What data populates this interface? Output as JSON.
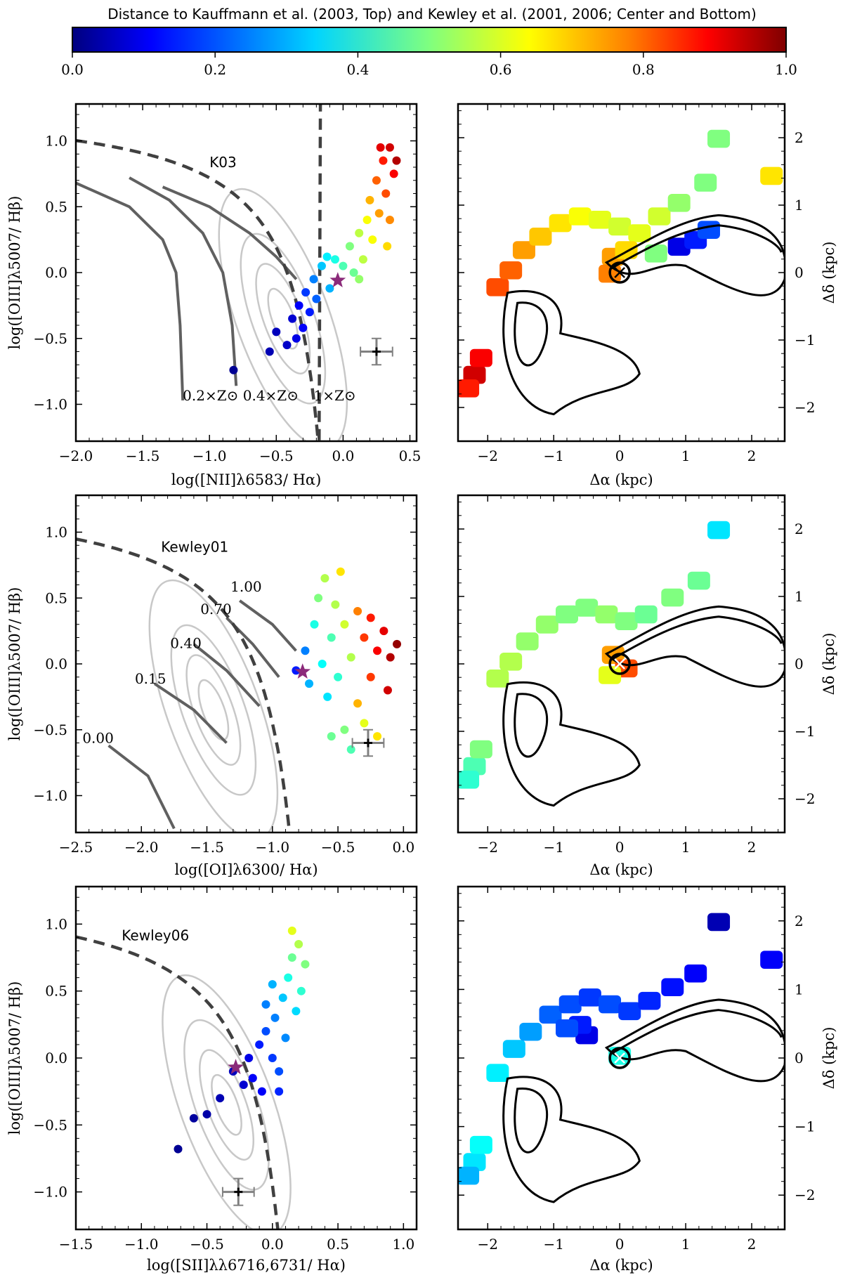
{
  "colorbar": {
    "title": "Distance to Kauffmann et al. (2003, Top) and Kewley et al. (2001, 2006; Center and Bottom)",
    "ticks": [
      "0.0",
      "0.2",
      "0.4",
      "0.6",
      "0.8",
      "1.0"
    ],
    "range": [
      0,
      1
    ],
    "colormap": "jet",
    "colors": [
      "#00007f",
      "#0000ff",
      "#007fff",
      "#00ffff",
      "#7fff7f",
      "#ffff00",
      "#ff7f00",
      "#ff0000",
      "#7f0000"
    ]
  },
  "chart_data": [
    {
      "id": "bpt_nii",
      "type": "scatter",
      "xlabel": "log([NII]λ6583/ Hα)",
      "ylabel": "log([OIII]λ5007/ Hβ)",
      "xlim": [
        -2.0,
        0.55
      ],
      "ylim": [
        -1.28,
        1.28
      ],
      "xticks": [
        "−2.0",
        "−1.5",
        "−1.0",
        "−0.5",
        "0.0",
        "0.5"
      ],
      "yticks": [
        "−1.0",
        "−0.5",
        "0.0",
        "0.5",
        "1.0"
      ],
      "demarcation_label": "K03",
      "model_labels": [
        "0.2×Z⊙",
        "0.4×Z⊙",
        "1×Z⊙"
      ],
      "model_tracks": [
        [
          [
            -2.0,
            0.68
          ],
          [
            -1.6,
            0.5
          ],
          [
            -1.35,
            0.25
          ],
          [
            -1.25,
            0.0
          ],
          [
            -1.22,
            -0.4
          ],
          [
            -1.2,
            -0.97
          ]
        ],
        [
          [
            -1.6,
            0.72
          ],
          [
            -1.3,
            0.55
          ],
          [
            -1.05,
            0.3
          ],
          [
            -0.9,
            0.0
          ],
          [
            -0.83,
            -0.4
          ],
          [
            -0.8,
            -0.86
          ]
        ],
        [
          [
            -1.35,
            0.65
          ],
          [
            -1.0,
            0.5
          ],
          [
            -0.7,
            0.3
          ],
          [
            -0.5,
            0.12
          ],
          [
            -0.35,
            -0.05
          ]
        ]
      ],
      "points": [
        {
          "x": -0.82,
          "y": -0.74,
          "d": 0.02
        },
        {
          "x": -0.55,
          "y": -0.6,
          "d": 0.05
        },
        {
          "x": -0.5,
          "y": -0.45,
          "d": 0.06
        },
        {
          "x": -0.42,
          "y": -0.55,
          "d": 0.07
        },
        {
          "x": -0.38,
          "y": -0.35,
          "d": 0.08
        },
        {
          "x": -0.35,
          "y": -0.5,
          "d": 0.1
        },
        {
          "x": -0.33,
          "y": -0.25,
          "d": 0.12
        },
        {
          "x": -0.3,
          "y": -0.42,
          "d": 0.12
        },
        {
          "x": -0.28,
          "y": -0.15,
          "d": 0.18
        },
        {
          "x": -0.25,
          "y": -0.3,
          "d": 0.15
        },
        {
          "x": -0.22,
          "y": -0.05,
          "d": 0.25
        },
        {
          "x": -0.2,
          "y": -0.2,
          "d": 0.22
        },
        {
          "x": -0.16,
          "y": 0.05,
          "d": 0.32
        },
        {
          "x": -0.12,
          "y": 0.12,
          "d": 0.36
        },
        {
          "x": -0.1,
          "y": -0.12,
          "d": 0.3
        },
        {
          "x": -0.06,
          "y": 0.1,
          "d": 0.4
        },
        {
          "x": 0.0,
          "y": 0.05,
          "d": 0.45
        },
        {
          "x": 0.05,
          "y": 0.2,
          "d": 0.5
        },
        {
          "x": 0.08,
          "y": 0.0,
          "d": 0.48
        },
        {
          "x": 0.12,
          "y": 0.3,
          "d": 0.56
        },
        {
          "x": 0.15,
          "y": 0.1,
          "d": 0.56
        },
        {
          "x": 0.18,
          "y": 0.4,
          "d": 0.62
        },
        {
          "x": 0.2,
          "y": 0.55,
          "d": 0.7
        },
        {
          "x": 0.22,
          "y": 0.25,
          "d": 0.62
        },
        {
          "x": 0.25,
          "y": 0.7,
          "d": 0.78
        },
        {
          "x": 0.27,
          "y": 0.45,
          "d": 0.72
        },
        {
          "x": 0.3,
          "y": 0.85,
          "d": 0.85
        },
        {
          "x": 0.32,
          "y": 0.6,
          "d": 0.8
        },
        {
          "x": 0.35,
          "y": 0.95,
          "d": 0.92
        },
        {
          "x": 0.38,
          "y": 0.75,
          "d": 0.88
        },
        {
          "x": 0.4,
          "y": 0.85,
          "d": 0.95
        },
        {
          "x": 0.28,
          "y": 0.95,
          "d": 0.9
        },
        {
          "x": 0.33,
          "y": 0.2,
          "d": 0.66
        },
        {
          "x": 0.12,
          "y": -0.05,
          "d": 0.52
        },
        {
          "x": 0.35,
          "y": 0.4,
          "d": 0.74
        }
      ],
      "star": {
        "x": -0.04,
        "y": -0.06
      },
      "errorbar": {
        "x": 0.25,
        "y": -0.6,
        "xerr": 0.12,
        "yerr": 0.1
      }
    },
    {
      "id": "map_nii",
      "type": "heatmap",
      "xlabel": "Δα (kpc)",
      "ylabel": "Δδ (kpc)",
      "xlim": [
        -2.45,
        2.5
      ],
      "ylim": [
        -2.5,
        2.5
      ],
      "xticks": [
        "−2",
        "−1",
        "0",
        "1",
        "2"
      ],
      "yticks": [
        "−2",
        "−1",
        "0",
        "1",
        "2"
      ],
      "marker": {
        "x": 0,
        "y": 0,
        "symbol": "×",
        "color": "#000000"
      },
      "patches": [
        {
          "x": -2.2,
          "y": -1.55,
          "d": 0.92
        },
        {
          "x": -2.1,
          "y": -1.3,
          "d": 0.88
        },
        {
          "x": -2.3,
          "y": -1.75,
          "d": 0.85
        },
        {
          "x": -1.85,
          "y": -0.25,
          "d": 0.8
        },
        {
          "x": -1.65,
          "y": 0.0,
          "d": 0.78
        },
        {
          "x": -1.45,
          "y": 0.3,
          "d": 0.72
        },
        {
          "x": -1.2,
          "y": 0.5,
          "d": 0.68
        },
        {
          "x": -0.9,
          "y": 0.7,
          "d": 0.65
        },
        {
          "x": -0.6,
          "y": 0.8,
          "d": 0.62
        },
        {
          "x": -0.3,
          "y": 0.75,
          "d": 0.6
        },
        {
          "x": 0.0,
          "y": 0.65,
          "d": 0.58
        },
        {
          "x": 0.3,
          "y": 0.55,
          "d": 0.6
        },
        {
          "x": 0.6,
          "y": 0.8,
          "d": 0.58
        },
        {
          "x": 0.9,
          "y": 1.0,
          "d": 0.52
        },
        {
          "x": 1.3,
          "y": 1.3,
          "d": 0.5
        },
        {
          "x": -0.1,
          "y": 0.2,
          "d": 0.72
        },
        {
          "x": 0.1,
          "y": 0.3,
          "d": 0.66
        },
        {
          "x": -0.15,
          "y": -0.05,
          "d": 0.75
        },
        {
          "x": 0.9,
          "y": 0.35,
          "d": 0.1
        },
        {
          "x": 1.15,
          "y": 0.45,
          "d": 0.15
        },
        {
          "x": 1.35,
          "y": 0.6,
          "d": 0.2
        },
        {
          "x": 0.55,
          "y": 0.25,
          "d": 0.5
        },
        {
          "x": 1.5,
          "y": 1.95,
          "d": 0.5
        },
        {
          "x": 2.3,
          "y": 1.4,
          "d": 0.65
        }
      ]
    },
    {
      "id": "bpt_oi",
      "type": "scatter",
      "xlabel": "log([OI]λ6300/ Hα)",
      "ylabel": "log([OIII]λ5007/ Hβ)",
      "xlim": [
        -2.5,
        0.1
      ],
      "ylim": [
        -1.28,
        1.28
      ],
      "xticks": [
        "−2.5",
        "−2.0",
        "−1.5",
        "−1.0",
        "−0.5",
        "0.0"
      ],
      "yticks": [
        "−1.0",
        "−0.5",
        "0.0",
        "0.5",
        "1.0"
      ],
      "demarcation_label": "Kewley01",
      "model_labels": [
        "1.00",
        "0.70",
        "0.40",
        "0.15",
        "0.00"
      ],
      "model_tracks": [
        [
          [
            -1.25,
            0.48
          ],
          [
            -1.0,
            0.3
          ],
          [
            -0.82,
            0.1
          ]
        ],
        [
          [
            -1.35,
            0.35
          ],
          [
            -1.15,
            0.15
          ],
          [
            -0.95,
            -0.1
          ]
        ],
        [
          [
            -1.6,
            0.15
          ],
          [
            -1.35,
            -0.05
          ],
          [
            -1.1,
            -0.32
          ]
        ],
        [
          [
            -1.9,
            -0.15
          ],
          [
            -1.6,
            -0.35
          ],
          [
            -1.35,
            -0.6
          ]
        ],
        [
          [
            -2.25,
            -0.62
          ],
          [
            -1.95,
            -0.85
          ],
          [
            -1.75,
            -1.25
          ]
        ]
      ],
      "points": [
        {
          "x": -0.82,
          "y": -0.05,
          "d": 0.15
        },
        {
          "x": -0.75,
          "y": 0.1,
          "d": 0.25
        },
        {
          "x": -0.72,
          "y": -0.15,
          "d": 0.3
        },
        {
          "x": -0.68,
          "y": 0.3,
          "d": 0.4
        },
        {
          "x": -0.65,
          "y": 0.5,
          "d": 0.5
        },
        {
          "x": -0.62,
          "y": 0.0,
          "d": 0.38
        },
        {
          "x": -0.6,
          "y": 0.65,
          "d": 0.55
        },
        {
          "x": -0.58,
          "y": -0.25,
          "d": 0.35
        },
        {
          "x": -0.55,
          "y": 0.2,
          "d": 0.45
        },
        {
          "x": -0.52,
          "y": 0.45,
          "d": 0.55
        },
        {
          "x": -0.5,
          "y": -0.1,
          "d": 0.42
        },
        {
          "x": -0.48,
          "y": 0.7,
          "d": 0.65
        },
        {
          "x": -0.45,
          "y": 0.3,
          "d": 0.58
        },
        {
          "x": -0.4,
          "y": 0.05,
          "d": 0.55
        },
        {
          "x": -0.35,
          "y": 0.4,
          "d": 0.75
        },
        {
          "x": -0.3,
          "y": 0.2,
          "d": 0.82
        },
        {
          "x": -0.25,
          "y": 0.35,
          "d": 0.85
        },
        {
          "x": -0.2,
          "y": 0.1,
          "d": 0.88
        },
        {
          "x": -0.15,
          "y": 0.25,
          "d": 0.9
        },
        {
          "x": -0.1,
          "y": 0.05,
          "d": 0.95
        },
        {
          "x": -0.05,
          "y": 0.15,
          "d": 0.98
        },
        {
          "x": -0.45,
          "y": -0.5,
          "d": 0.5
        },
        {
          "x": -0.4,
          "y": -0.65,
          "d": 0.45
        },
        {
          "x": -0.3,
          "y": -0.45,
          "d": 0.6
        },
        {
          "x": -0.55,
          "y": -0.55,
          "d": 0.48
        },
        {
          "x": -0.2,
          "y": -0.55,
          "d": 0.65
        },
        {
          "x": -0.35,
          "y": -0.3,
          "d": 0.7
        },
        {
          "x": -0.25,
          "y": -0.1,
          "d": 0.82
        },
        {
          "x": -0.12,
          "y": -0.2,
          "d": 0.92
        }
      ],
      "star": {
        "x": -0.77,
        "y": -0.06
      },
      "errorbar": {
        "x": -0.27,
        "y": -0.6,
        "xerr": 0.12,
        "yerr": 0.1
      }
    },
    {
      "id": "map_oi",
      "type": "heatmap",
      "xlabel": "Δα (kpc)",
      "ylabel": "Δδ (kpc)",
      "xlim": [
        -2.45,
        2.5
      ],
      "ylim": [
        -2.5,
        2.5
      ],
      "xticks": [
        "−2",
        "−1",
        "0",
        "1",
        "2"
      ],
      "yticks": [
        "−2",
        "−1",
        "0",
        "1",
        "2"
      ],
      "marker": {
        "x": 0,
        "y": 0,
        "symbol": "×",
        "color": "#ffffff"
      },
      "patches": [
        {
          "x": -2.2,
          "y": -1.55,
          "d": 0.45
        },
        {
          "x": -2.1,
          "y": -1.3,
          "d": 0.5
        },
        {
          "x": -2.3,
          "y": -1.75,
          "d": 0.42
        },
        {
          "x": -1.85,
          "y": -0.25,
          "d": 0.55
        },
        {
          "x": -1.65,
          "y": 0.0,
          "d": 0.55
        },
        {
          "x": -1.4,
          "y": 0.3,
          "d": 0.52
        },
        {
          "x": -1.1,
          "y": 0.55,
          "d": 0.52
        },
        {
          "x": -0.8,
          "y": 0.7,
          "d": 0.5
        },
        {
          "x": -0.5,
          "y": 0.8,
          "d": 0.5
        },
        {
          "x": -0.2,
          "y": 0.7,
          "d": 0.52
        },
        {
          "x": 0.1,
          "y": 0.6,
          "d": 0.5
        },
        {
          "x": 0.4,
          "y": 0.7,
          "d": 0.48
        },
        {
          "x": 0.8,
          "y": 0.95,
          "d": 0.5
        },
        {
          "x": 1.2,
          "y": 1.2,
          "d": 0.48
        },
        {
          "x": -0.1,
          "y": 0.1,
          "d": 0.72
        },
        {
          "x": 0.1,
          "y": -0.1,
          "d": 0.8
        },
        {
          "x": -0.15,
          "y": -0.2,
          "d": 0.6
        },
        {
          "x": 1.5,
          "y": 1.95,
          "d": 0.35
        }
      ]
    },
    {
      "id": "bpt_sii",
      "type": "scatter",
      "xlabel": "log([SII]λλ6716,6731/ Hα)",
      "ylabel": "log([OIII]λ5007/ Hβ)",
      "xlim": [
        -1.5,
        1.1
      ],
      "ylim": [
        -1.28,
        1.28
      ],
      "xticks": [
        "−1.5",
        "−1.0",
        "−0.5",
        "0.0",
        "0.5",
        "1.0"
      ],
      "yticks": [
        "−1.0",
        "−0.5",
        "0.0",
        "0.5",
        "1.0"
      ],
      "demarcation_label": "Kewley06",
      "points": [
        {
          "x": -0.72,
          "y": -0.68,
          "d": 0.02
        },
        {
          "x": -0.6,
          "y": -0.45,
          "d": 0.03
        },
        {
          "x": -0.5,
          "y": -0.42,
          "d": 0.04
        },
        {
          "x": -0.4,
          "y": -0.3,
          "d": 0.05
        },
        {
          "x": -0.3,
          "y": -0.1,
          "d": 0.06
        },
        {
          "x": -0.22,
          "y": -0.2,
          "d": 0.08
        },
        {
          "x": -0.18,
          "y": 0.0,
          "d": 0.1
        },
        {
          "x": -0.15,
          "y": -0.15,
          "d": 0.12
        },
        {
          "x": -0.1,
          "y": 0.1,
          "d": 0.15
        },
        {
          "x": -0.08,
          "y": -0.25,
          "d": 0.12
        },
        {
          "x": -0.05,
          "y": 0.2,
          "d": 0.2
        },
        {
          "x": 0.0,
          "y": 0.0,
          "d": 0.18
        },
        {
          "x": 0.02,
          "y": 0.3,
          "d": 0.25
        },
        {
          "x": 0.05,
          "y": -0.1,
          "d": 0.2
        },
        {
          "x": 0.08,
          "y": 0.45,
          "d": 0.32
        },
        {
          "x": 0.1,
          "y": 0.15,
          "d": 0.26
        },
        {
          "x": 0.12,
          "y": 0.6,
          "d": 0.4
        },
        {
          "x": 0.15,
          "y": 0.75,
          "d": 0.48
        },
        {
          "x": 0.18,
          "y": 0.35,
          "d": 0.34
        },
        {
          "x": 0.2,
          "y": 0.85,
          "d": 0.55
        },
        {
          "x": 0.22,
          "y": 0.5,
          "d": 0.42
        },
        {
          "x": 0.15,
          "y": 0.95,
          "d": 0.6
        },
        {
          "x": 0.25,
          "y": 0.7,
          "d": 0.5
        },
        {
          "x": 0.0,
          "y": 0.55,
          "d": 0.3
        },
        {
          "x": -0.05,
          "y": 0.4,
          "d": 0.25
        },
        {
          "x": 0.05,
          "y": -0.25,
          "d": 0.16
        }
      ],
      "star": {
        "x": -0.28,
        "y": -0.07
      },
      "errorbar": {
        "x": -0.26,
        "y": -1.0,
        "xerr": 0.12,
        "yerr": 0.1
      }
    },
    {
      "id": "map_sii",
      "type": "heatmap",
      "xlabel": "Δα (kpc)",
      "ylabel": "Δδ (kpc)",
      "xlim": [
        -2.45,
        2.5
      ],
      "ylim": [
        -2.5,
        2.5
      ],
      "xticks": [
        "−2",
        "−1",
        "0",
        "1",
        "2"
      ],
      "yticks": [
        "−2",
        "−1",
        "0",
        "1",
        "2"
      ],
      "marker": {
        "x": 0,
        "y": 0,
        "symbol": "×",
        "color": "#ffffff"
      },
      "patches": [
        {
          "x": -2.2,
          "y": -1.55,
          "d": 0.35
        },
        {
          "x": -2.1,
          "y": -1.3,
          "d": 0.38
        },
        {
          "x": -2.3,
          "y": -1.75,
          "d": 0.3
        },
        {
          "x": -1.85,
          "y": -0.25,
          "d": 0.36
        },
        {
          "x": -1.6,
          "y": 0.1,
          "d": 0.32
        },
        {
          "x": -1.35,
          "y": 0.35,
          "d": 0.28
        },
        {
          "x": -1.05,
          "y": 0.6,
          "d": 0.22
        },
        {
          "x": -0.75,
          "y": 0.75,
          "d": 0.2
        },
        {
          "x": -0.45,
          "y": 0.85,
          "d": 0.18
        },
        {
          "x": -0.15,
          "y": 0.75,
          "d": 0.2
        },
        {
          "x": 0.15,
          "y": 0.65,
          "d": 0.18
        },
        {
          "x": 0.45,
          "y": 0.8,
          "d": 0.16
        },
        {
          "x": 0.8,
          "y": 1.0,
          "d": 0.14
        },
        {
          "x": 1.15,
          "y": 1.2,
          "d": 0.12
        },
        {
          "x": 0.0,
          "y": 0.0,
          "d": 0.4
        },
        {
          "x": 1.5,
          "y": 1.95,
          "d": 0.05
        },
        {
          "x": 2.3,
          "y": 1.4,
          "d": 0.12
        },
        {
          "x": -0.5,
          "y": 0.3,
          "d": 0.1
        },
        {
          "x": -0.6,
          "y": 0.45,
          "d": 0.15
        },
        {
          "x": -0.8,
          "y": 0.4,
          "d": 0.2
        }
      ]
    }
  ]
}
